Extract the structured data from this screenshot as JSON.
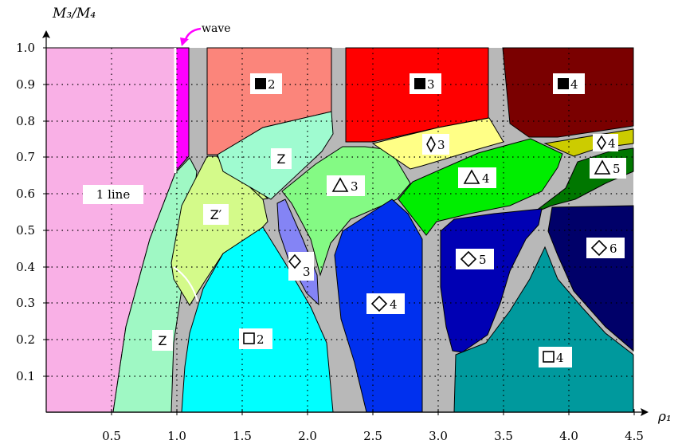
{
  "axes": {
    "x_label": "ρ1",
    "y_label": "M3/M4",
    "x_ticks": [
      "0.5",
      "1.0",
      "1.5",
      "2.0",
      "2.5",
      "3.0",
      "3.5",
      "4.0",
      "4.5"
    ],
    "y_ticks": [
      "0.1",
      "0.2",
      "0.3",
      "0.4",
      "0.5",
      "0.6",
      "0.7",
      "0.8",
      "0.9",
      "1.0"
    ],
    "x_range": [
      0,
      4.5
    ],
    "y_range": [
      0,
      1.0
    ]
  },
  "annotation": {
    "wave": "wave"
  },
  "colors": {
    "one_line": "#f9b0e6",
    "wave": "#ff00ff",
    "gray": "#b8b8b8",
    "square_filled_2": "#fb857b",
    "square_filled_3": "#ff0000",
    "square_filled_4": "#7a0000",
    "z_top": "#9ffbd0",
    "z_prime": "#d4fa8a",
    "z_bottom": "#9ff8c4",
    "square_open_2": "#00ffff",
    "diamond_3_small": "#8484f5",
    "triangle_3": "#84fa84",
    "diamond_3_yellow": "#ffff86",
    "triangle_4": "#00ee00",
    "diamond_4": "#0030ee",
    "diamond_4_yellow": "#cccc00",
    "triangle_5": "#007700",
    "diamond_5": "#0000b4",
    "diamond_6": "#000069",
    "square_open_4": "#00999d"
  },
  "regions": {
    "one_line": {
      "text": "1 line"
    },
    "sq_filled_2": {
      "text": "2"
    },
    "sq_filled_3": {
      "text": "3"
    },
    "sq_filled_4": {
      "text": "4"
    },
    "z_top": {
      "text": "Z"
    },
    "z_prime": {
      "text": "Z′"
    },
    "z_bottom": {
      "text": "Z"
    },
    "sq_open_2": {
      "text": "2"
    },
    "dia_3_small": {
      "text": "3"
    },
    "tri_3": {
      "text": "3"
    },
    "dia_3_yellow": {
      "text": "3"
    },
    "tri_4": {
      "text": "4"
    },
    "dia_4": {
      "text": "4"
    },
    "dia_4_yellow": {
      "text": "4"
    },
    "tri_5": {
      "text": "5"
    },
    "dia_5": {
      "text": "5"
    },
    "dia_6": {
      "text": "6"
    },
    "sq_open_4": {
      "text": "4"
    }
  }
}
